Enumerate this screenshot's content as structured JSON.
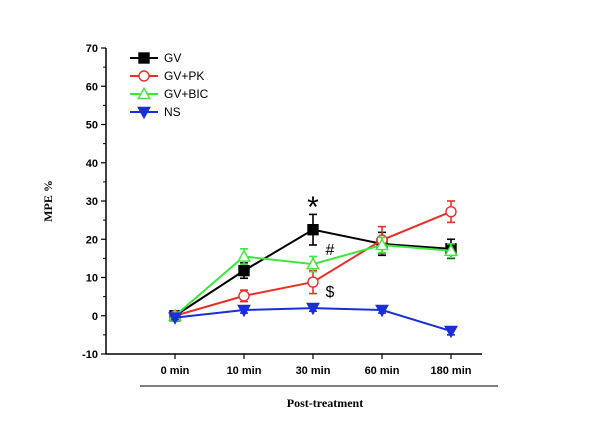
{
  "chart_data": {
    "type": "line",
    "ylabel": "MPE %",
    "xlabel": "Post-treatment",
    "categories": [
      "0 min",
      "10 min",
      "30 min",
      "60 min",
      "180 min"
    ],
    "ylim": [
      -10,
      70
    ],
    "yticks": [
      -10,
      0,
      10,
      20,
      30,
      40,
      50,
      60,
      70
    ],
    "grid": false,
    "legend_position": "top-left",
    "series": [
      {
        "name": "GV",
        "color": "#000000",
        "marker": "filled-square",
        "values": [
          0,
          11.8,
          22.5,
          18.8,
          17.5
        ],
        "errors": [
          0.5,
          2.0,
          4.0,
          3.0,
          2.5
        ]
      },
      {
        "name": "GV+PK",
        "color": "#e8302a",
        "marker": "open-circle",
        "values": [
          0,
          5.2,
          8.8,
          19.8,
          27.2
        ],
        "errors": [
          0.5,
          1.5,
          3.0,
          3.5,
          2.8
        ]
      },
      {
        "name": "GV+BIC",
        "color": "#3ee63e",
        "marker": "open-triangle-up",
        "values": [
          0,
          15.5,
          13.5,
          18.5,
          17.0
        ],
        "errors": [
          0.5,
          2.0,
          2.0,
          2.0,
          1.8
        ]
      },
      {
        "name": "NS",
        "color": "#1a2fd6",
        "marker": "filled-triangle-down",
        "values": [
          -0.5,
          1.5,
          2.0,
          1.5,
          -4.0
        ],
        "errors": [
          0.5,
          0.8,
          0.8,
          0.8,
          1.0
        ]
      }
    ],
    "annotations": [
      {
        "text": "*",
        "category": "30 min",
        "y": 29.5
      },
      {
        "text": "#",
        "category": "30 min",
        "y": 17.5
      },
      {
        "text": "$",
        "category": "30 min",
        "y": 6.5
      }
    ]
  }
}
